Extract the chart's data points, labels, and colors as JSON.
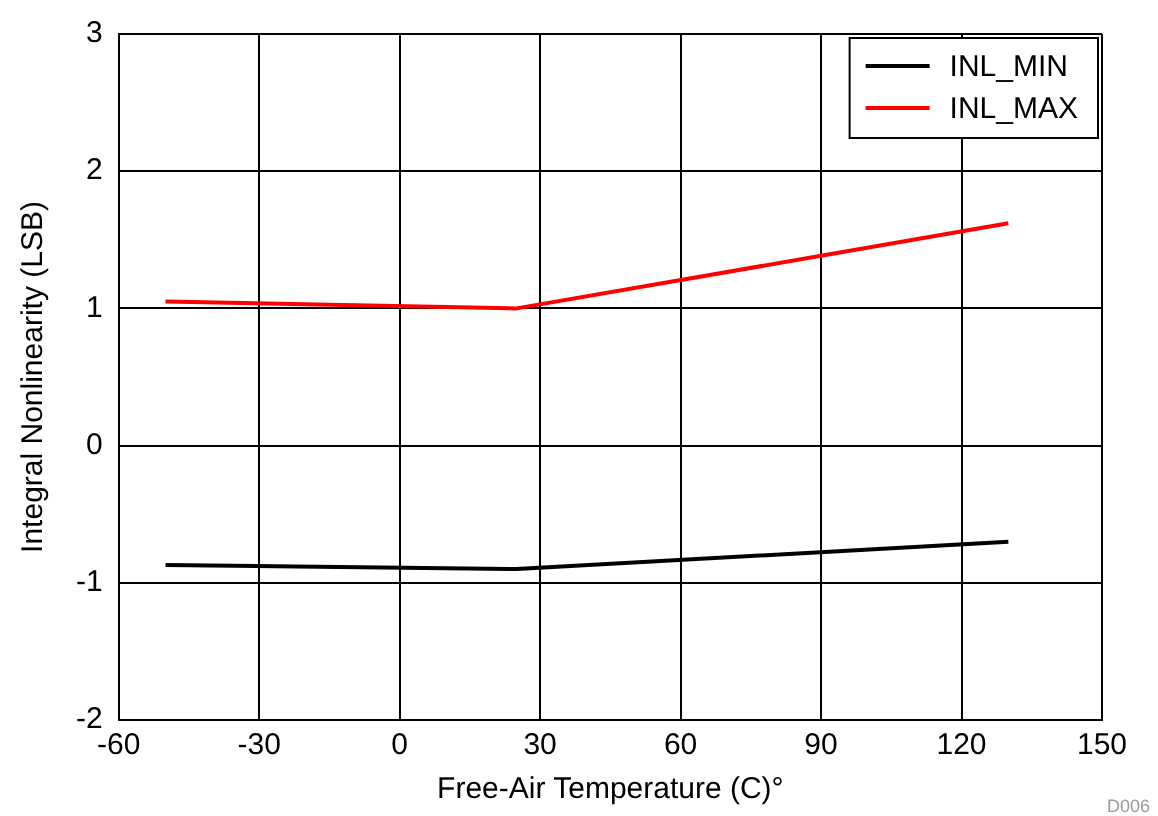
{
  "chart_data": {
    "type": "line",
    "xlabel": "Free-Air Temperature (C)°",
    "ylabel": "Integral Nonlinearity (LSB)",
    "x": [
      -50,
      25,
      130
    ],
    "series": [
      {
        "name": "INL_MIN",
        "color": "#000000",
        "values": [
          -0.87,
          -0.9,
          -0.7
        ]
      },
      {
        "name": "INL_MAX",
        "color": "#ff0000",
        "values": [
          1.05,
          1.0,
          1.62
        ]
      }
    ],
    "xlim": [
      -60,
      150
    ],
    "xticks": [
      -60,
      -30,
      0,
      30,
      60,
      90,
      120,
      150
    ],
    "ylim": [
      -2,
      3
    ],
    "yticks": [
      -2,
      -1,
      0,
      1,
      2,
      3
    ],
    "grid": true,
    "legend": "top right",
    "marker": "none",
    "line_style": "solid",
    "annotations": [
      "D006"
    ]
  }
}
